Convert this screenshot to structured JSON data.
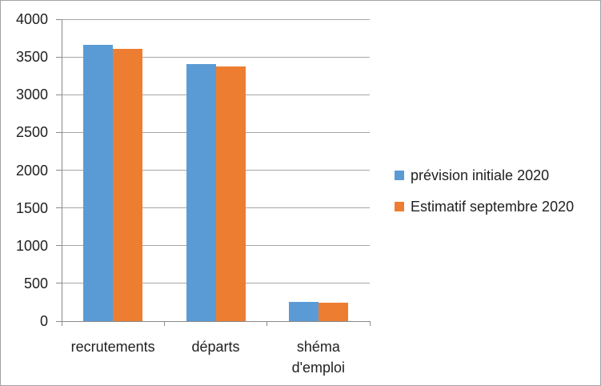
{
  "chart": {
    "background": "#ffffff",
    "border_color": "#a3a3a3",
    "gridline_color": "#a6a6a6",
    "axis_color": "#8a8a8a",
    "text_color": "#1f1f1f"
  },
  "chart_data": {
    "type": "bar",
    "title": "",
    "xlabel": "",
    "ylabel": "",
    "categories": [
      "recrutements",
      "départs",
      "shéma d'emploi"
    ],
    "series": [
      {
        "name": "prévision initiale 2020",
        "color": "#5b9bd5",
        "values": [
          3660,
          3410,
          250
        ]
      },
      {
        "name": "Estimatif septembre 2020",
        "color": "#ed7d31",
        "values": [
          3610,
          3370,
          240
        ]
      }
    ],
    "ylim": [
      0,
      4000
    ],
    "yticks": [
      0,
      500,
      1000,
      1500,
      2000,
      2500,
      3000,
      3500,
      4000
    ],
    "grid": true,
    "legend_position": "right"
  }
}
